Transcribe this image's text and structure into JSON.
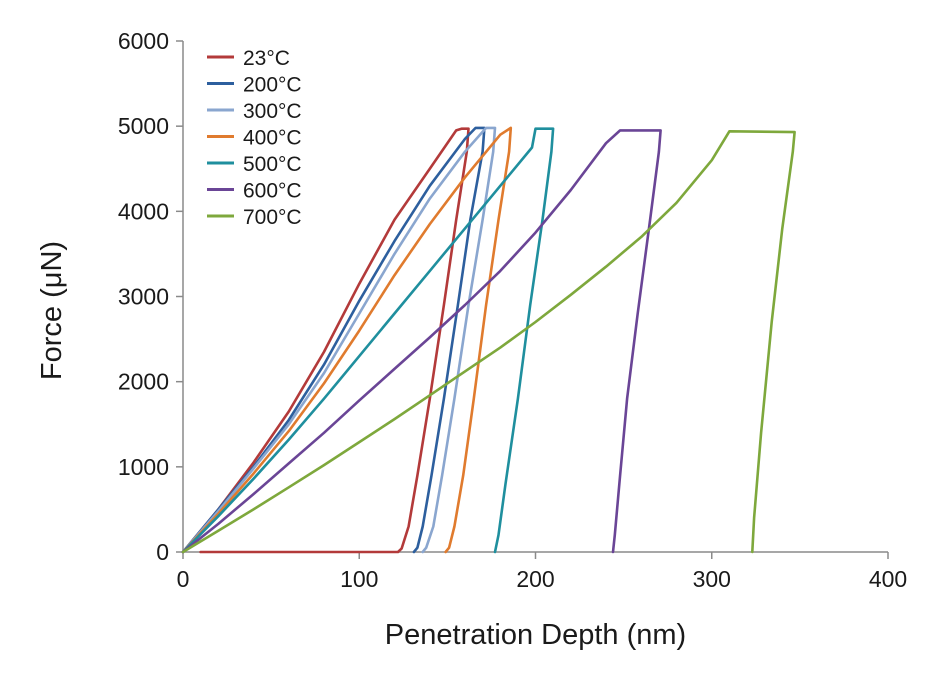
{
  "chart_data": {
    "type": "line",
    "title": "",
    "xlabel": "Penetration Depth (nm)",
    "ylabel": "Force (μN)",
    "xlim": [
      0,
      400
    ],
    "ylim": [
      0,
      6000
    ],
    "xticks": [
      "0",
      "100",
      "200",
      "300",
      "400"
    ],
    "yticks": [
      "0",
      "1000",
      "2000",
      "3000",
      "4000",
      "5000",
      "6000"
    ],
    "grid": false,
    "legend_position": "top-left",
    "series": [
      {
        "name": "23°C",
        "color": "#b33a3a",
        "x": [
          0,
          20,
          40,
          60,
          80,
          100,
          120,
          140,
          155,
          158,
          162,
          161,
          155,
          148,
          140,
          133,
          128,
          124,
          122,
          60,
          10
        ],
        "y": [
          0,
          500,
          1050,
          1650,
          2350,
          3150,
          3900,
          4500,
          4950,
          4970,
          4970,
          4700,
          3900,
          2900,
          1800,
          900,
          300,
          40,
          0,
          0,
          0
        ]
      },
      {
        "name": "200°C",
        "color": "#2d5f9e",
        "x": [
          0,
          20,
          40,
          60,
          80,
          100,
          120,
          140,
          160,
          166,
          171,
          170,
          163,
          156,
          148,
          141,
          136,
          133,
          131
        ],
        "y": [
          0,
          500,
          1000,
          1550,
          2200,
          2950,
          3650,
          4300,
          4850,
          4980,
          4980,
          4700,
          3900,
          2900,
          1800,
          900,
          300,
          50,
          0
        ]
      },
      {
        "name": "300°C",
        "color": "#8aa6cf",
        "x": [
          0,
          20,
          40,
          60,
          80,
          100,
          120,
          140,
          160,
          172,
          177,
          176,
          170,
          162,
          154,
          147,
          142,
          138,
          136
        ],
        "y": [
          0,
          480,
          980,
          1500,
          2100,
          2800,
          3500,
          4150,
          4700,
          4980,
          4980,
          4700,
          3900,
          2900,
          1800,
          900,
          300,
          50,
          0
        ]
      },
      {
        "name": "400°C",
        "color": "#e07b2e",
        "x": [
          0,
          20,
          40,
          60,
          80,
          100,
          120,
          140,
          160,
          180,
          186,
          185,
          179,
          172,
          165,
          159,
          154,
          151,
          149
        ],
        "y": [
          0,
          450,
          920,
          1420,
          1980,
          2600,
          3250,
          3850,
          4400,
          4900,
          4980,
          4700,
          3900,
          2900,
          1800,
          900,
          300,
          50,
          0
        ]
      },
      {
        "name": "500°C",
        "color": "#1f8f9e",
        "x": [
          0,
          20,
          40,
          60,
          80,
          100,
          120,
          140,
          160,
          180,
          198,
          200,
          210,
          209,
          204,
          197,
          190,
          183,
          179,
          177
        ],
        "y": [
          0,
          420,
          860,
          1320,
          1800,
          2300,
          2800,
          3300,
          3800,
          4300,
          4750,
          4970,
          4970,
          4700,
          3900,
          2900,
          1800,
          800,
          200,
          0
        ]
      },
      {
        "name": "600°C",
        "color": "#6a4596",
        "x": [
          0,
          20,
          40,
          60,
          80,
          100,
          120,
          140,
          160,
          180,
          200,
          220,
          240,
          248,
          271,
          270,
          265,
          258,
          252,
          248,
          245,
          244
        ],
        "y": [
          0,
          330,
          680,
          1040,
          1400,
          1780,
          2150,
          2520,
          2900,
          3300,
          3750,
          4250,
          4800,
          4950,
          4950,
          4700,
          3900,
          2800,
          1800,
          900,
          200,
          0
        ]
      },
      {
        "name": "700°C",
        "color": "#7ea83c",
        "x": [
          0,
          20,
          40,
          60,
          80,
          100,
          120,
          140,
          160,
          180,
          200,
          220,
          240,
          260,
          280,
          300,
          310,
          347,
          346,
          340,
          334,
          328,
          324,
          323
        ],
        "y": [
          0,
          250,
          500,
          760,
          1020,
          1290,
          1560,
          1840,
          2120,
          2400,
          2700,
          3020,
          3350,
          3700,
          4100,
          4600,
          4940,
          4930,
          4700,
          3800,
          2700,
          1400,
          400,
          0
        ]
      }
    ]
  }
}
